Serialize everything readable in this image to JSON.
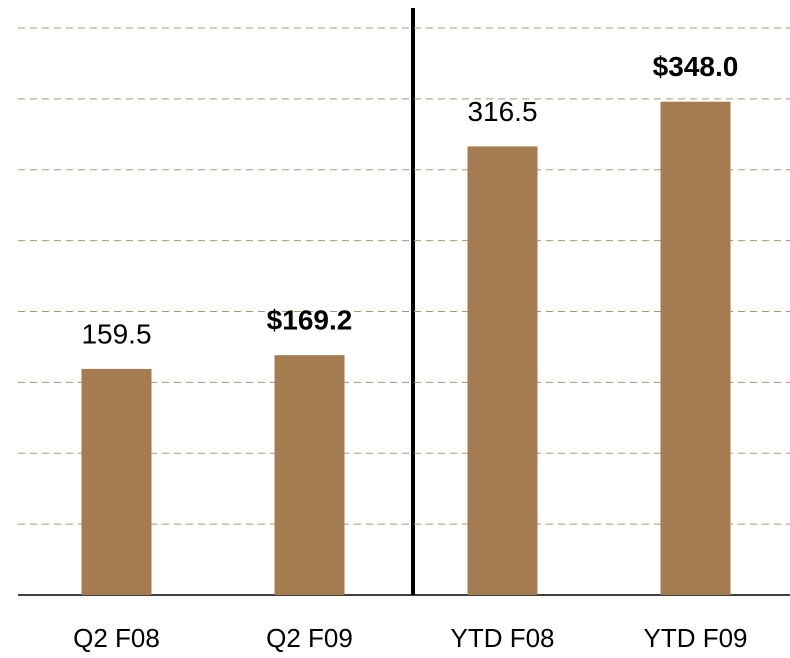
{
  "chart_data": {
    "type": "bar",
    "categories": [
      "Q2 F08",
      "Q2 F09",
      "YTD F08",
      "YTD F09"
    ],
    "values": [
      159.5,
      169.2,
      316.5,
      348.0
    ],
    "value_labels": [
      "159.5",
      "$169.2",
      "316.5",
      "$348.0"
    ],
    "bold_labels": [
      false,
      true,
      false,
      true
    ],
    "color": "#a57c52",
    "ylim": [
      0,
      400
    ],
    "yticks": [
      0,
      50,
      100,
      150,
      200,
      250,
      300,
      350,
      400
    ],
    "grid": true
  }
}
